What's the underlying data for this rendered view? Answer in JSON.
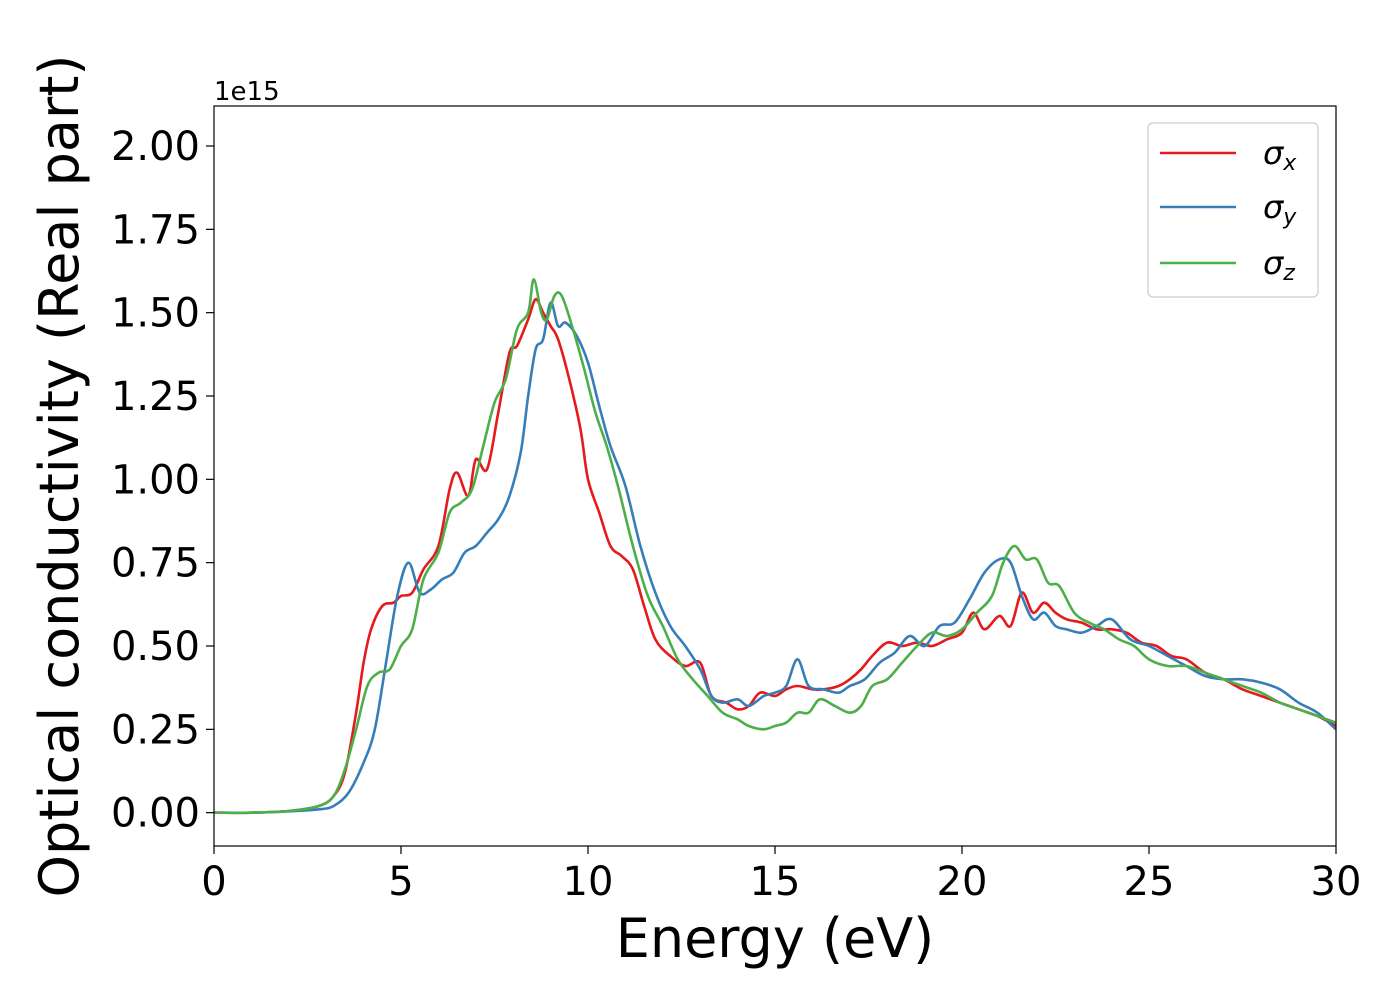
{
  "chart_data": {
    "type": "line",
    "xlabel": "Energy (eV)",
    "ylabel": "Optical conductivity (Real part)",
    "y_offset_label": "1e15",
    "xlim": [
      0,
      30
    ],
    "ylim": [
      -0.1,
      2.12
    ],
    "xticks": [
      0,
      5,
      10,
      15,
      20,
      25,
      30
    ],
    "xtick_labels": [
      "0",
      "5",
      "10",
      "15",
      "20",
      "25",
      "30"
    ],
    "yticks": [
      0.0,
      0.25,
      0.5,
      0.75,
      1.0,
      1.25,
      1.5,
      1.75,
      2.0
    ],
    "ytick_labels": [
      "0.00",
      "0.25",
      "0.50",
      "0.75",
      "1.00",
      "1.25",
      "1.50",
      "1.75",
      "2.00"
    ],
    "grid": false,
    "legend_position": "top-right",
    "series": [
      {
        "name": "σx",
        "symbol": "σ",
        "subscript": "x",
        "color": "#e41a1c",
        "x": [
          0,
          1,
          2,
          2.8,
          3.2,
          3.5,
          3.8,
          4.0,
          4.2,
          4.5,
          4.8,
          5.0,
          5.3,
          5.6,
          6.0,
          6.3,
          6.5,
          6.8,
          7.0,
          7.3,
          7.6,
          7.9,
          8.1,
          8.4,
          8.6,
          8.8,
          9.0,
          9.2,
          9.5,
          9.8,
          10.0,
          10.3,
          10.6,
          10.9,
          11.2,
          11.5,
          11.8,
          12.2,
          12.6,
          13.0,
          13.3,
          13.7,
          14.0,
          14.3,
          14.6,
          15.0,
          15.3,
          15.6,
          16.0,
          16.3,
          16.7,
          17.0,
          17.3,
          17.6,
          18.0,
          18.4,
          18.8,
          19.2,
          19.6,
          20.0,
          20.3,
          20.6,
          21.0,
          21.3,
          21.6,
          21.9,
          22.2,
          22.5,
          22.8,
          23.2,
          23.6,
          24.0,
          24.4,
          24.8,
          25.2,
          25.6,
          26.0,
          26.5,
          27.0,
          27.5,
          28.0,
          28.5,
          29.0,
          29.5,
          30.0
        ],
        "values": [
          0.0,
          0.0,
          0.005,
          0.02,
          0.05,
          0.12,
          0.3,
          0.45,
          0.55,
          0.62,
          0.63,
          0.65,
          0.66,
          0.73,
          0.8,
          0.97,
          1.02,
          0.95,
          1.06,
          1.03,
          1.2,
          1.38,
          1.4,
          1.48,
          1.54,
          1.5,
          1.46,
          1.42,
          1.3,
          1.15,
          1.0,
          0.9,
          0.8,
          0.77,
          0.73,
          0.62,
          0.52,
          0.47,
          0.44,
          0.45,
          0.35,
          0.33,
          0.31,
          0.32,
          0.36,
          0.35,
          0.37,
          0.38,
          0.37,
          0.37,
          0.38,
          0.4,
          0.43,
          0.47,
          0.51,
          0.5,
          0.51,
          0.5,
          0.52,
          0.54,
          0.6,
          0.55,
          0.59,
          0.56,
          0.66,
          0.6,
          0.63,
          0.6,
          0.58,
          0.57,
          0.55,
          0.55,
          0.54,
          0.51,
          0.5,
          0.47,
          0.46,
          0.42,
          0.4,
          0.37,
          0.35,
          0.33,
          0.31,
          0.29,
          0.26
        ]
      },
      {
        "name": "σy",
        "symbol": "σ",
        "subscript": "y",
        "color": "#377eb8",
        "x": [
          0,
          1,
          2,
          2.8,
          3.2,
          3.6,
          4.0,
          4.3,
          4.6,
          4.9,
          5.2,
          5.5,
          5.8,
          6.1,
          6.4,
          6.7,
          7.0,
          7.3,
          7.6,
          7.9,
          8.2,
          8.4,
          8.6,
          8.8,
          9.0,
          9.2,
          9.4,
          9.7,
          10.0,
          10.3,
          10.6,
          11.0,
          11.4,
          11.8,
          12.2,
          12.6,
          13.0,
          13.3,
          13.6,
          14.0,
          14.3,
          14.7,
          15.0,
          15.3,
          15.6,
          15.9,
          16.3,
          16.7,
          17.0,
          17.4,
          17.8,
          18.2,
          18.6,
          19.0,
          19.4,
          19.8,
          20.2,
          20.6,
          21.0,
          21.3,
          21.6,
          21.9,
          22.2,
          22.5,
          22.8,
          23.2,
          23.6,
          24.0,
          24.5,
          25.0,
          25.5,
          26.0,
          26.5,
          27.0,
          27.5,
          28.0,
          28.5,
          29.0,
          29.5,
          30.0
        ],
        "values": [
          0.0,
          0.0,
          0.004,
          0.01,
          0.02,
          0.06,
          0.15,
          0.25,
          0.45,
          0.65,
          0.75,
          0.66,
          0.67,
          0.7,
          0.72,
          0.78,
          0.8,
          0.84,
          0.88,
          0.95,
          1.08,
          1.25,
          1.39,
          1.42,
          1.53,
          1.46,
          1.47,
          1.43,
          1.35,
          1.22,
          1.1,
          0.98,
          0.8,
          0.66,
          0.56,
          0.5,
          0.43,
          0.35,
          0.33,
          0.34,
          0.32,
          0.35,
          0.36,
          0.38,
          0.46,
          0.38,
          0.37,
          0.36,
          0.38,
          0.4,
          0.45,
          0.48,
          0.53,
          0.5,
          0.56,
          0.57,
          0.64,
          0.72,
          0.76,
          0.75,
          0.65,
          0.58,
          0.6,
          0.56,
          0.55,
          0.54,
          0.56,
          0.58,
          0.52,
          0.5,
          0.47,
          0.44,
          0.41,
          0.4,
          0.4,
          0.39,
          0.37,
          0.33,
          0.3,
          0.25
        ]
      },
      {
        "name": "σz",
        "symbol": "σ",
        "subscript": "z",
        "color": "#4daf4a",
        "x": [
          0,
          1,
          2,
          2.8,
          3.2,
          3.5,
          3.8,
          4.1,
          4.4,
          4.7,
          5.0,
          5.3,
          5.6,
          6.0,
          6.3,
          6.6,
          6.9,
          7.2,
          7.5,
          7.8,
          8.1,
          8.4,
          8.55,
          8.75,
          8.9,
          9.1,
          9.3,
          9.6,
          9.9,
          10.2,
          10.5,
          10.8,
          11.2,
          11.6,
          12.0,
          12.4,
          12.8,
          13.2,
          13.6,
          14.0,
          14.3,
          14.7,
          15.0,
          15.3,
          15.6,
          15.9,
          16.2,
          16.6,
          17.0,
          17.3,
          17.6,
          18.0,
          18.4,
          18.8,
          19.2,
          19.6,
          20.0,
          20.4,
          20.8,
          21.1,
          21.4,
          21.7,
          22.0,
          22.3,
          22.6,
          23.0,
          23.4,
          23.8,
          24.2,
          24.6,
          25.0,
          25.5,
          26.0,
          26.5,
          27.0,
          27.5,
          28.0,
          28.5,
          29.0,
          29.5,
          30.0
        ],
        "values": [
          0.0,
          0.0,
          0.005,
          0.02,
          0.05,
          0.13,
          0.25,
          0.38,
          0.42,
          0.43,
          0.5,
          0.55,
          0.7,
          0.78,
          0.9,
          0.93,
          0.97,
          1.1,
          1.23,
          1.3,
          1.45,
          1.5,
          1.6,
          1.5,
          1.48,
          1.55,
          1.55,
          1.45,
          1.33,
          1.2,
          1.1,
          0.98,
          0.8,
          0.65,
          0.56,
          0.46,
          0.4,
          0.35,
          0.3,
          0.28,
          0.26,
          0.25,
          0.26,
          0.27,
          0.3,
          0.3,
          0.34,
          0.32,
          0.3,
          0.32,
          0.38,
          0.4,
          0.45,
          0.5,
          0.54,
          0.53,
          0.55,
          0.6,
          0.65,
          0.75,
          0.8,
          0.76,
          0.76,
          0.69,
          0.68,
          0.6,
          0.57,
          0.55,
          0.52,
          0.5,
          0.46,
          0.44,
          0.44,
          0.42,
          0.4,
          0.38,
          0.36,
          0.33,
          0.31,
          0.29,
          0.27
        ]
      }
    ]
  }
}
